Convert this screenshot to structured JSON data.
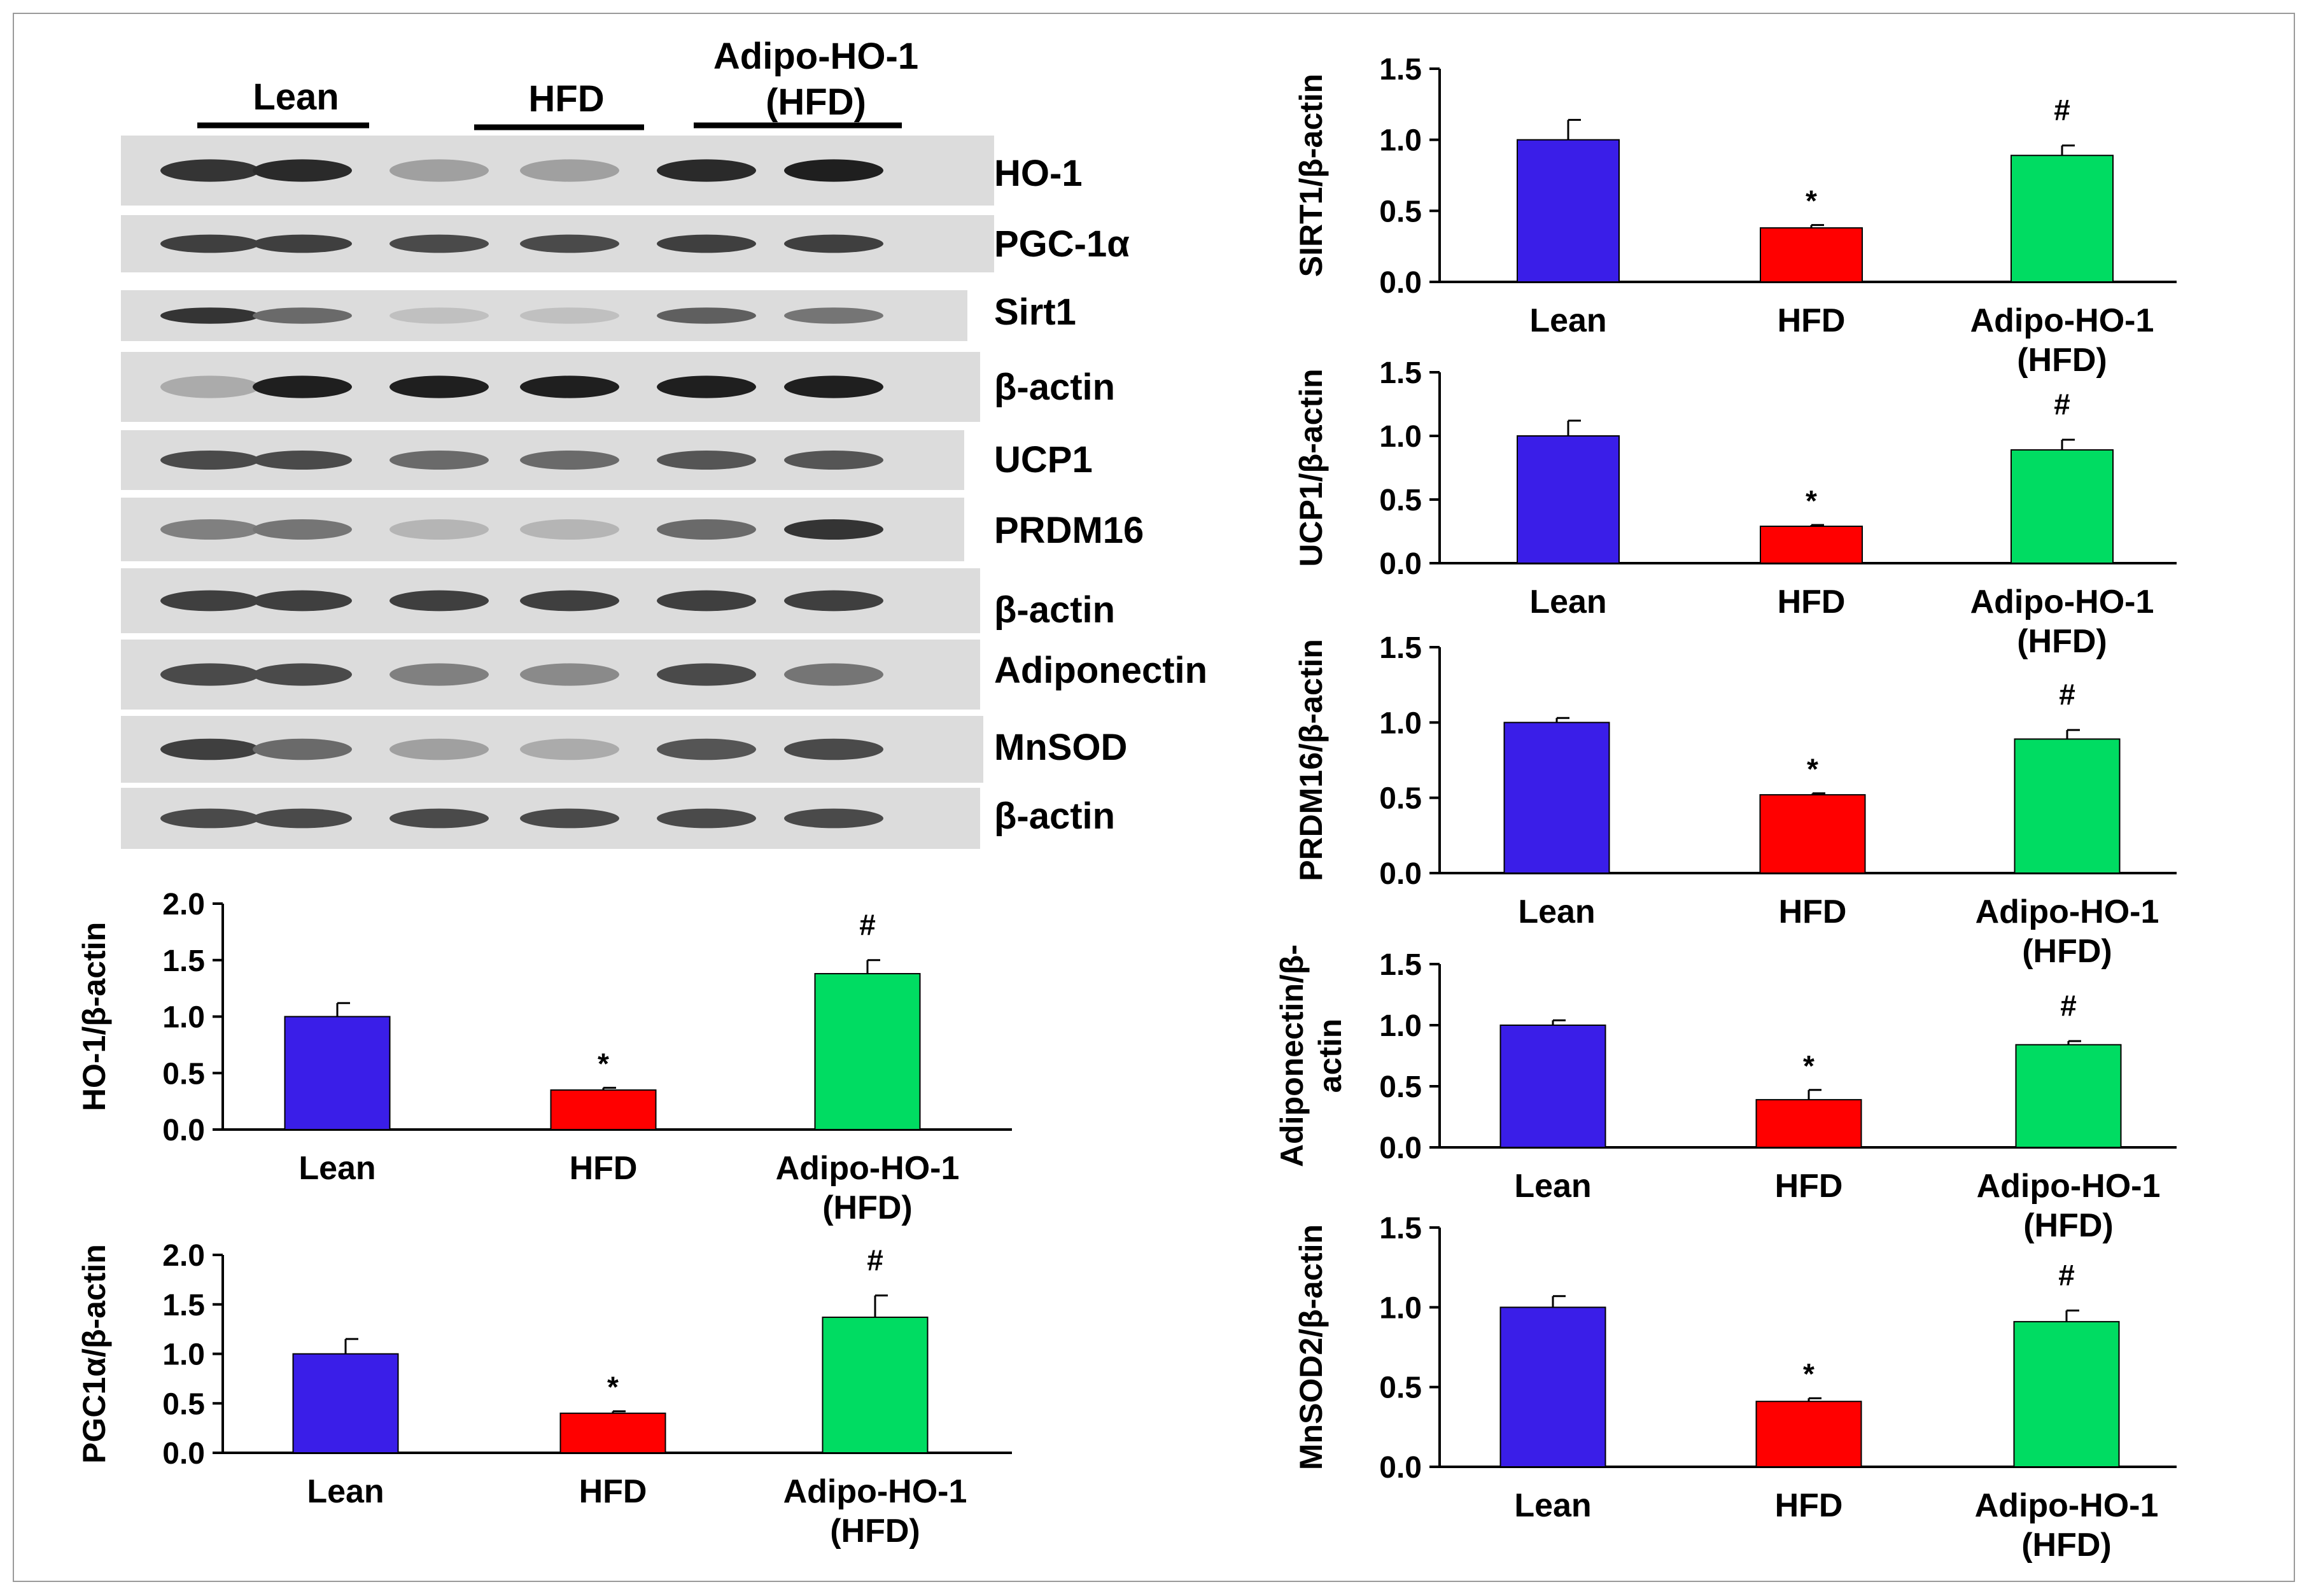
{
  "blot": {
    "group_headers": [
      "Lean",
      "HFD",
      "Adipo-HO-1",
      "(HFD)"
    ],
    "rows": [
      {
        "label": "HO-1",
        "intensities": [
          0.85,
          0.9,
          0.35,
          0.35,
          0.9,
          0.95
        ]
      },
      {
        "label": "PGC-1α",
        "intensities": [
          0.8,
          0.8,
          0.75,
          0.75,
          0.8,
          0.8
        ]
      },
      {
        "label": "Sirt1",
        "intensities": [
          0.85,
          0.6,
          0.2,
          0.2,
          0.65,
          0.55
        ]
      },
      {
        "label": "β-actin",
        "intensities": [
          0.3,
          0.95,
          0.95,
          0.95,
          0.95,
          0.95
        ]
      },
      {
        "label": "UCP1",
        "intensities": [
          0.75,
          0.75,
          0.6,
          0.6,
          0.7,
          0.7
        ]
      },
      {
        "label": "PRDM16",
        "intensities": [
          0.5,
          0.55,
          0.25,
          0.25,
          0.6,
          0.85
        ]
      },
      {
        "label": "β-actin",
        "intensities": [
          0.8,
          0.8,
          0.8,
          0.8,
          0.8,
          0.8
        ]
      },
      {
        "label": "Adiponectin",
        "intensities": [
          0.75,
          0.75,
          0.5,
          0.45,
          0.75,
          0.55
        ]
      },
      {
        "label": "MnSOD",
        "intensities": [
          0.8,
          0.6,
          0.35,
          0.3,
          0.7,
          0.75
        ]
      },
      {
        "label": "β-actin",
        "intensities": [
          0.75,
          0.75,
          0.75,
          0.75,
          0.75,
          0.75
        ]
      }
    ]
  },
  "colors": {
    "Lean": "#3a1ee8",
    "HFD": "#ff0000",
    "Adipo-HO-1 (HFD)": "#00dc62"
  },
  "chart_data": [
    {
      "type": "bar",
      "ylabel": "HO-1/β-actin",
      "ylim": [
        0,
        2.0
      ],
      "yticks": [
        "0.0",
        "0.5",
        "1.0",
        "1.5",
        "2.0"
      ],
      "categories": [
        [
          "Lean"
        ],
        [
          "HFD"
        ],
        [
          "Adipo-HO-1",
          "(HFD)"
        ]
      ],
      "values": [
        1.0,
        0.35,
        1.38
      ],
      "errors": [
        0.12,
        0.02,
        0.12
      ],
      "marks": [
        "",
        "*",
        "#"
      ]
    },
    {
      "type": "bar",
      "ylabel": "PGC1α/β-actin",
      "ylim": [
        0,
        2.0
      ],
      "yticks": [
        "0.0",
        "0.5",
        "1.0",
        "1.5",
        "2.0"
      ],
      "categories": [
        [
          "Lean"
        ],
        [
          "HFD"
        ],
        [
          "Adipo-HO-1",
          "(HFD)"
        ]
      ],
      "values": [
        1.0,
        0.4,
        1.37
      ],
      "errors": [
        0.15,
        0.02,
        0.22
      ],
      "marks": [
        "",
        "*",
        "#"
      ]
    },
    {
      "type": "bar",
      "ylabel": "SIRT1/β-actin",
      "ylim": [
        0,
        1.5
      ],
      "yticks": [
        "0.0",
        "0.5",
        "1.0",
        "1.5"
      ],
      "categories": [
        [
          "Lean"
        ],
        [
          "HFD"
        ],
        [
          "Adipo-HO-1",
          "(HFD)"
        ]
      ],
      "values": [
        1.0,
        0.38,
        0.89
      ],
      "errors": [
        0.14,
        0.02,
        0.07
      ],
      "marks": [
        "",
        "*",
        "#"
      ]
    },
    {
      "type": "bar",
      "ylabel": "UCP1/β-actin",
      "ylim": [
        0,
        1.5
      ],
      "yticks": [
        "0.0",
        "0.5",
        "1.0",
        "1.5"
      ],
      "categories": [
        [
          "Lean"
        ],
        [
          "HFD"
        ],
        [
          "Adipo-HO-1",
          "(HFD)"
        ]
      ],
      "values": [
        1.0,
        0.29,
        0.89
      ],
      "errors": [
        0.12,
        0.01,
        0.08
      ],
      "marks": [
        "",
        "*",
        "#"
      ]
    },
    {
      "type": "bar",
      "ylabel": "PRDM16/β-actin",
      "ylim": [
        0,
        1.5
      ],
      "yticks": [
        "0.0",
        "0.5",
        "1.0",
        "1.5"
      ],
      "categories": [
        [
          "Lean"
        ],
        [
          "HFD"
        ],
        [
          "Adipo-HO-1",
          "(HFD)"
        ]
      ],
      "values": [
        1.0,
        0.52,
        0.89
      ],
      "errors": [
        0.03,
        0.01,
        0.06
      ],
      "marks": [
        "",
        "*",
        "#"
      ]
    },
    {
      "type": "bar",
      "ylabel": "Adiponectin/β-\nactin",
      "ylim": [
        0,
        1.5
      ],
      "yticks": [
        "0.0",
        "0.5",
        "1.0",
        "1.5"
      ],
      "categories": [
        [
          "Lean"
        ],
        [
          "HFD"
        ],
        [
          "Adipo-HO-1",
          "(HFD)"
        ]
      ],
      "values": [
        1.0,
        0.39,
        0.84
      ],
      "errors": [
        0.04,
        0.08,
        0.03
      ],
      "marks": [
        "",
        "*",
        "#"
      ]
    },
    {
      "type": "bar",
      "ylabel": "MnSOD2/β-actin",
      "ylim": [
        0,
        1.5
      ],
      "yticks": [
        "0.0",
        "0.5",
        "1.0",
        "1.5"
      ],
      "categories": [
        [
          "Lean"
        ],
        [
          "HFD"
        ],
        [
          "Adipo-HO-1",
          "(HFD)"
        ]
      ],
      "values": [
        1.0,
        0.41,
        0.91
      ],
      "errors": [
        0.07,
        0.02,
        0.07
      ],
      "marks": [
        "",
        "*",
        "#"
      ]
    }
  ]
}
